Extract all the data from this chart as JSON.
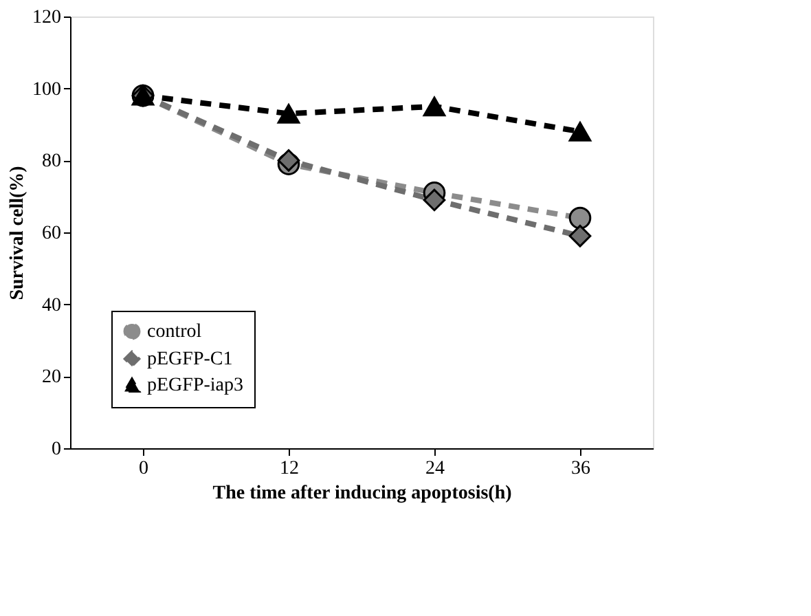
{
  "chart_data": {
    "type": "line",
    "xlabel": "The time after inducing apoptosis(h)",
    "ylabel": "Survival cell(%)",
    "categories": [
      "0",
      "12",
      "24",
      "36"
    ],
    "series": [
      {
        "name": "control",
        "color": "#8c8c8c",
        "marker": "circle",
        "line_style": "dashed",
        "values": [
          98,
          79,
          71,
          64
        ]
      },
      {
        "name": "pEGFP-C1",
        "color": "#6e6e6e",
        "marker": "diamond",
        "line_style": "dashed",
        "values": [
          98,
          80,
          69,
          59
        ]
      },
      {
        "name": "pEGFP-iap3",
        "color": "#000000",
        "marker": "triangle",
        "line_style": "dashed",
        "values": [
          98,
          93,
          95,
          88
        ]
      }
    ],
    "ylim": [
      0,
      120
    ],
    "yticks": [
      0,
      20,
      40,
      60,
      80,
      100,
      120
    ],
    "grid": false,
    "legend": "bottom left"
  }
}
